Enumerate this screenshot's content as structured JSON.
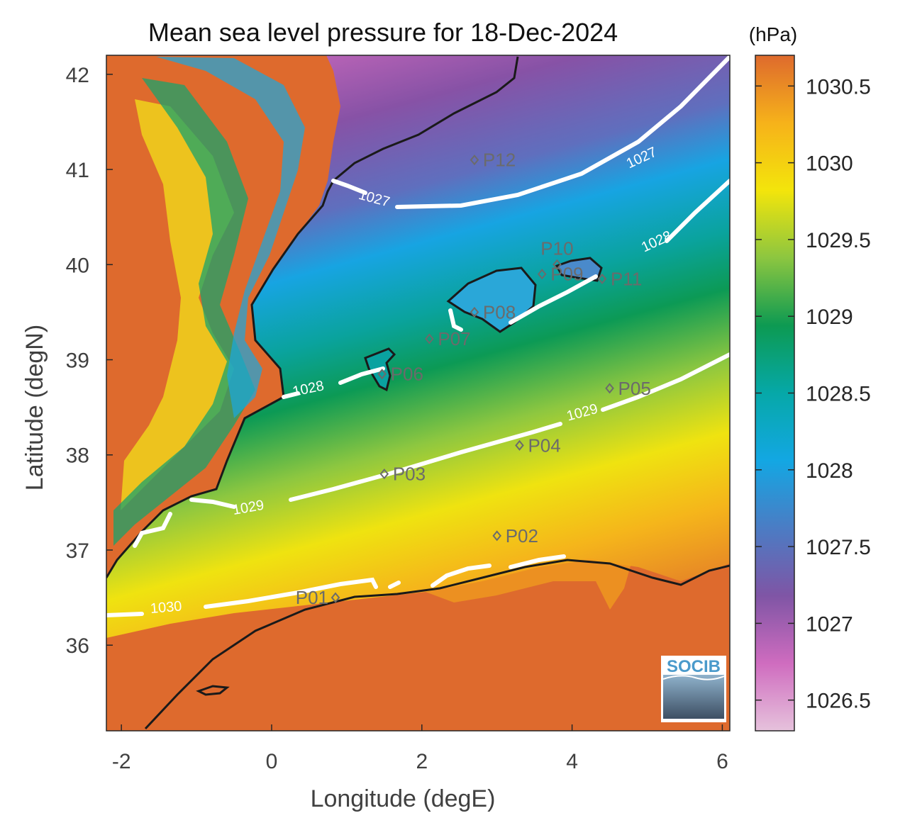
{
  "title": "Mean sea level pressure for 18-Dec-2024",
  "colorbar": {
    "units": "(hPa)",
    "min": 1026.3,
    "max": 1030.7,
    "ticks": [
      "1030.5",
      "1030",
      "1029.5",
      "1029",
      "1028.5",
      "1028",
      "1027.5",
      "1027",
      "1026.5"
    ],
    "tick_values": [
      1030.5,
      1030,
      1029.5,
      1029,
      1028.5,
      1028,
      1027.5,
      1027,
      1026.5
    ],
    "colors": [
      "#e6c2dc",
      "#cf6cbf",
      "#7f55a5",
      "#4b7cc4",
      "#13a7e3",
      "#06a8a8",
      "#0d9a52",
      "#8cc640",
      "#f3e50b",
      "#f6b21a",
      "#de6a2d"
    ]
  },
  "axes": {
    "xlabel": "Longitude (degE)",
    "ylabel": "Latitude (degN)",
    "xlim": [
      -2.2,
      6.1
    ],
    "ylim": [
      35.1,
      42.2
    ],
    "xticks": [
      "-2",
      "0",
      "2",
      "4",
      "6"
    ],
    "xtick_values": [
      -2,
      0,
      2,
      4,
      6
    ],
    "yticks": [
      "42",
      "41",
      "40",
      "39",
      "38",
      "37",
      "36"
    ],
    "ytick_values": [
      42,
      41,
      40,
      39,
      38,
      37,
      36
    ]
  },
  "contour_labels": [
    {
      "text": "1027",
      "lon": 4.95,
      "lat": 41.08,
      "angle": -25
    },
    {
      "text": "1027",
      "lon": 1.35,
      "lat": 40.65,
      "angle": 15
    },
    {
      "text": "1028",
      "lon": 5.15,
      "lat": 40.2,
      "angle": -25
    },
    {
      "text": "1028",
      "lon": 0.5,
      "lat": 38.65,
      "angle": -12
    },
    {
      "text": "1029",
      "lon": 4.15,
      "lat": 38.4,
      "angle": -15
    },
    {
      "text": "1029",
      "lon": -0.3,
      "lat": 37.4,
      "angle": -10
    },
    {
      "text": "1030",
      "lon": -1.4,
      "lat": 36.35,
      "angle": -5
    }
  ],
  "stations": [
    {
      "name": "P01",
      "lon": 0.85,
      "lat": 36.5
    },
    {
      "name": "P02",
      "lon": 3.0,
      "lat": 37.15
    },
    {
      "name": "P03",
      "lon": 1.5,
      "lat": 37.8
    },
    {
      "name": "P04",
      "lon": 3.3,
      "lat": 38.1
    },
    {
      "name": "P05",
      "lon": 4.5,
      "lat": 38.7
    },
    {
      "name": "P06",
      "lon": 1.47,
      "lat": 38.85
    },
    {
      "name": "P07",
      "lon": 2.1,
      "lat": 39.22
    },
    {
      "name": "P08",
      "lon": 2.7,
      "lat": 39.5
    },
    {
      "name": "P09",
      "lon": 3.6,
      "lat": 39.9
    },
    {
      "name": "P10",
      "lon": 3.8,
      "lat": 40.0
    },
    {
      "name": "P11",
      "lon": 4.4,
      "lat": 39.85
    },
    {
      "name": "P12",
      "lon": 2.7,
      "lat": 41.1
    }
  ],
  "logo": {
    "text": "SOCIB"
  }
}
